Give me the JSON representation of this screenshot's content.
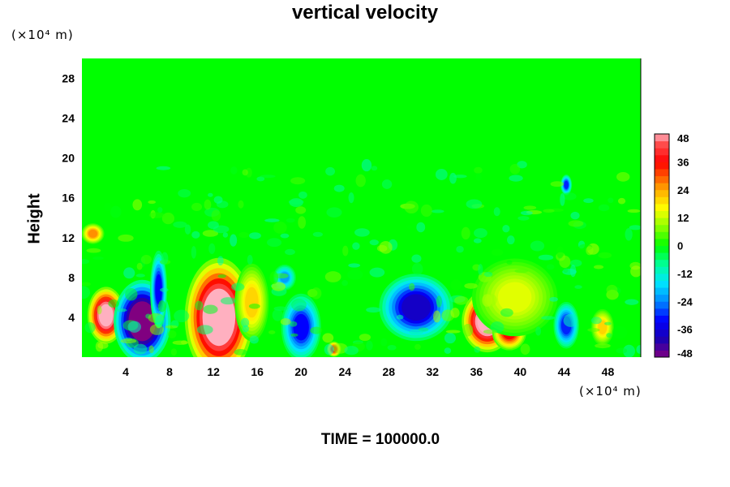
{
  "chart_data": {
    "type": "heatmap",
    "title": "vertical velocity",
    "ylabel": "Height",
    "y_unit_label": "(×10⁴ m)",
    "x_unit_label": "(×10⁴ m)",
    "x_ticks": [
      4,
      8,
      12,
      16,
      20,
      24,
      28,
      32,
      36,
      40,
      44,
      48
    ],
    "y_ticks": [
      4,
      8,
      12,
      16,
      20,
      24,
      28
    ],
    "xlim": [
      0,
      51
    ],
    "ylim": [
      0,
      30
    ],
    "colorbar": {
      "ticks": [
        48,
        36,
        24,
        12,
        0,
        -12,
        -24,
        -36,
        -48
      ],
      "range": [
        -48,
        48
      ]
    },
    "features": [
      {
        "x": 2.2,
        "y": 4.2,
        "value": 52,
        "rx": 1.3,
        "ry": 2.2
      },
      {
        "x": 5.5,
        "y": 3.6,
        "value": -55,
        "rx": 2.0,
        "ry": 3.2
      },
      {
        "x": 7.0,
        "y": 6.8,
        "value": -32,
        "rx": 0.6,
        "ry": 3.0
      },
      {
        "x": 12.5,
        "y": 4.0,
        "value": 56,
        "rx": 2.4,
        "ry": 4.6
      },
      {
        "x": 15.5,
        "y": 5.5,
        "value": 20,
        "rx": 1.2,
        "ry": 3.0
      },
      {
        "x": 20.0,
        "y": 3.0,
        "value": -32,
        "rx": 1.4,
        "ry": 2.6
      },
      {
        "x": 18.5,
        "y": 8.0,
        "value": -22,
        "rx": 0.8,
        "ry": 1.0
      },
      {
        "x": 23.0,
        "y": 0.8,
        "value": 34,
        "rx": 0.5,
        "ry": 0.6
      },
      {
        "x": 30.5,
        "y": 5.0,
        "value": -38,
        "rx": 2.6,
        "ry": 2.6
      },
      {
        "x": 37.0,
        "y": 3.6,
        "value": 54,
        "rx": 1.8,
        "ry": 2.4
      },
      {
        "x": 39.0,
        "y": 2.5,
        "value": 36,
        "rx": 1.2,
        "ry": 1.4
      },
      {
        "x": 39.5,
        "y": 6.0,
        "value": 14,
        "rx": 3.0,
        "ry": 3.0
      },
      {
        "x": 44.2,
        "y": 3.2,
        "value": -30,
        "rx": 0.9,
        "ry": 1.8
      },
      {
        "x": 1.0,
        "y": 12.4,
        "value": 26,
        "rx": 0.8,
        "ry": 0.8
      },
      {
        "x": 44.2,
        "y": 17.3,
        "value": -30,
        "rx": 0.4,
        "ry": 0.8
      },
      {
        "x": 47.5,
        "y": 3.0,
        "value": 20,
        "rx": 0.8,
        "ry": 1.4
      }
    ]
  },
  "footer": {
    "time_label": "TIME = 100000.0"
  }
}
